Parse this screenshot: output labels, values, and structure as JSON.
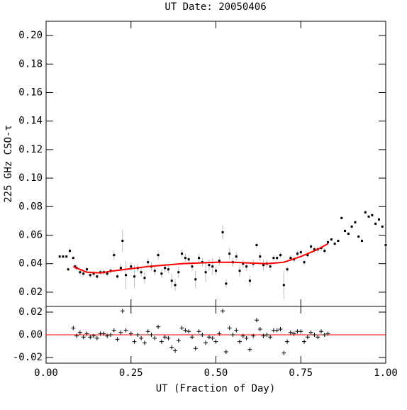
{
  "chart_data": [
    {
      "type": "scatter",
      "title": "UT Date: 20050406",
      "y_label": "225 GHz CSO-τ",
      "xlim": [
        0,
        1
      ],
      "xticks": [
        0,
        0.25,
        0.5,
        0.75,
        1
      ],
      "ylim": [
        0.01,
        0.21
      ],
      "yticks": [
        0.02,
        0.04,
        0.06,
        0.08,
        {
          "value": 0.1,
          "label": "0.10"
        },
        0.12,
        0.14,
        0.16,
        0.18,
        {
          "value": 0.2,
          "label": "0.20"
        }
      ],
      "series": [
        {
          "color": "#000000",
          "error_color": "#bbbbbb",
          "x": [
            0.04,
            0.05,
            0.06,
            0.065,
            0.07,
            0.08,
            0.085,
            0.09,
            0.1,
            0.11,
            0.12,
            0.13,
            0.14,
            0.15,
            0.16,
            0.17,
            0.18,
            0.19,
            0.2,
            0.21,
            0.22,
            0.225,
            0.235,
            0.25,
            0.26,
            0.27,
            0.28,
            0.29,
            0.3,
            0.31,
            0.32,
            0.33,
            0.34,
            0.35,
            0.36,
            0.37,
            0.38,
            0.39,
            0.4,
            0.41,
            0.42,
            0.43,
            0.44,
            0.45,
            0.46,
            0.47,
            0.48,
            0.49,
            0.5,
            0.51,
            0.52,
            0.53,
            0.54,
            0.55,
            0.56,
            0.57,
            0.58,
            0.59,
            0.6,
            0.61,
            0.62,
            0.63,
            0.64,
            0.65,
            0.66,
            0.67,
            0.68,
            0.69,
            0.7,
            0.71,
            0.72,
            0.73,
            0.74,
            0.75,
            0.76,
            0.77,
            0.78,
            0.79,
            0.8,
            0.81,
            0.82,
            0.83,
            0.84,
            0.85,
            0.86,
            0.87,
            0.88,
            0.89,
            0.9,
            0.91,
            0.92,
            0.93,
            0.94,
            0.95,
            0.96,
            0.97,
            0.98,
            0.99,
            1.0
          ],
          "values": [
            0.045,
            0.045,
            0.045,
            0.036,
            0.049,
            0.044,
            0.038,
            0.037,
            0.034,
            0.033,
            0.036,
            0.032,
            0.033,
            0.031,
            0.034,
            0.034,
            0.033,
            0.035,
            0.046,
            0.031,
            0.037,
            0.056,
            0.032,
            0.038,
            0.031,
            0.037,
            0.034,
            0.03,
            0.041,
            0.038,
            0.035,
            0.046,
            0.033,
            0.037,
            0.036,
            0.028,
            0.025,
            0.034,
            0.047,
            0.044,
            0.043,
            0.038,
            0.029,
            0.044,
            0.041,
            0.034,
            0.039,
            0.038,
            0.035,
            0.042,
            0.062,
            0.026,
            0.047,
            0.041,
            0.045,
            0.035,
            0.04,
            0.038,
            0.028,
            0.04,
            0.053,
            0.045,
            0.039,
            0.04,
            0.038,
            0.044,
            0.044,
            0.046,
            0.025,
            0.036,
            0.044,
            0.043,
            0.047,
            0.048,
            0.041,
            0.046,
            0.052,
            0.05,
            0.05,
            0.051,
            0.049,
            0.055,
            0.057,
            0.054,
            0.056,
            0.072,
            0.063,
            0.061,
            0.066,
            0.069,
            0.059,
            0.056,
            0.076,
            0.073,
            0.074,
            0.068,
            0.071,
            0.066,
            0.053
          ],
          "errors": [
            0.001,
            0.001,
            0.001,
            0.001,
            0.002,
            0.001,
            0.002,
            0.002,
            0.002,
            0.002,
            0.002,
            0.002,
            0.002,
            0.002,
            0.002,
            0.002,
            0.002,
            0.002,
            0.003,
            0.002,
            0.003,
            0.008,
            0.01,
            0.003,
            0.008,
            0.003,
            0.003,
            0.004,
            0.003,
            0.003,
            0.003,
            0.003,
            0.003,
            0.003,
            0.003,
            0.005,
            0.004,
            0.004,
            0.003,
            0.003,
            0.003,
            0.003,
            0.006,
            0.003,
            0.003,
            0.007,
            0.004,
            0.006,
            0.003,
            0.003,
            0.005,
            0.003,
            0.004,
            0.003,
            0.003,
            0.004,
            0.003,
            0.003,
            0.004,
            0.003,
            0.002,
            0.003,
            0.004,
            0.003,
            0.003,
            0.002,
            0.002,
            0.002,
            0.01,
            0.002,
            0.002,
            0.002,
            0.002,
            0.002,
            0.002,
            0.002,
            0.002,
            0.002,
            0.002,
            0.002,
            0.002,
            0.002,
            0.001,
            0.001,
            0.001,
            0.001,
            0.001,
            0.001,
            0.001,
            0.001,
            0.001,
            0.001,
            0.001,
            0.001,
            0.001,
            0.001,
            0.001,
            0.001,
            0.001
          ]
        },
        {
          "type": "line",
          "color": "#ff0000",
          "x": [
            0.08,
            0.12,
            0.16,
            0.2,
            0.25,
            0.3,
            0.35,
            0.4,
            0.45,
            0.5,
            0.55,
            0.6,
            0.65,
            0.7,
            0.75,
            0.8,
            0.83
          ],
          "values": [
            0.038,
            0.034,
            0.0335,
            0.035,
            0.0365,
            0.038,
            0.039,
            0.04,
            0.0405,
            0.041,
            0.041,
            0.0405,
            0.04,
            0.041,
            0.045,
            0.05,
            0.054
          ]
        }
      ]
    },
    {
      "type": "residual",
      "x_label": "UT (Fraction of Day)",
      "xlim": [
        0,
        1
      ],
      "xticks": [
        {
          "value": 0,
          "label": "0.00"
        },
        0.25,
        {
          "value": 0.5,
          "label": "0.50"
        },
        0.75,
        {
          "value": 1,
          "label": "1.00"
        }
      ],
      "ylim": [
        -0.025,
        0.025
      ],
      "yticks": [
        -0.02,
        {
          "value": 0,
          "label": "0.00"
        },
        0.02
      ],
      "hline": 0,
      "hline_color": "#ff0000",
      "color": "#000000",
      "x": [
        0.08,
        0.09,
        0.1,
        0.11,
        0.12,
        0.13,
        0.14,
        0.15,
        0.16,
        0.17,
        0.18,
        0.19,
        0.2,
        0.21,
        0.22,
        0.225,
        0.235,
        0.25,
        0.26,
        0.27,
        0.28,
        0.29,
        0.3,
        0.31,
        0.32,
        0.33,
        0.34,
        0.35,
        0.36,
        0.37,
        0.38,
        0.39,
        0.4,
        0.41,
        0.42,
        0.43,
        0.44,
        0.45,
        0.46,
        0.47,
        0.48,
        0.49,
        0.5,
        0.51,
        0.52,
        0.53,
        0.54,
        0.55,
        0.56,
        0.57,
        0.58,
        0.59,
        0.6,
        0.61,
        0.62,
        0.63,
        0.64,
        0.65,
        0.66,
        0.67,
        0.68,
        0.69,
        0.7,
        0.71,
        0.72,
        0.73,
        0.74,
        0.75,
        0.76,
        0.77,
        0.78,
        0.79,
        0.8,
        0.81,
        0.82,
        0.83
      ],
      "values": [
        0.006,
        -0.001,
        0.002,
        -0.002,
        0.001,
        -0.002,
        -0.001,
        -0.003,
        0.001,
        0.001,
        -0.001,
        0.0,
        0.004,
        -0.004,
        0.002,
        0.021,
        0.004,
        0.001,
        -0.006,
        0.0,
        -0.003,
        -0.007,
        0.003,
        0.0,
        -0.003,
        0.007,
        -0.006,
        -0.002,
        -0.003,
        -0.011,
        -0.014,
        -0.005,
        0.006,
        0.004,
        0.003,
        -0.002,
        -0.012,
        0.003,
        0.0,
        -0.007,
        -0.002,
        -0.003,
        -0.006,
        0.001,
        0.021,
        -0.015,
        0.006,
        0.0,
        0.004,
        -0.006,
        -0.001,
        -0.003,
        -0.013,
        -0.001,
        0.013,
        0.005,
        -0.001,
        0.0,
        -0.002,
        0.004,
        0.004,
        0.005,
        -0.016,
        -0.006,
        0.002,
        0.001,
        0.003,
        0.003,
        -0.006,
        -0.002,
        0.002,
        0.0,
        -0.002,
        0.003,
        0.0,
        0.001
      ]
    }
  ]
}
